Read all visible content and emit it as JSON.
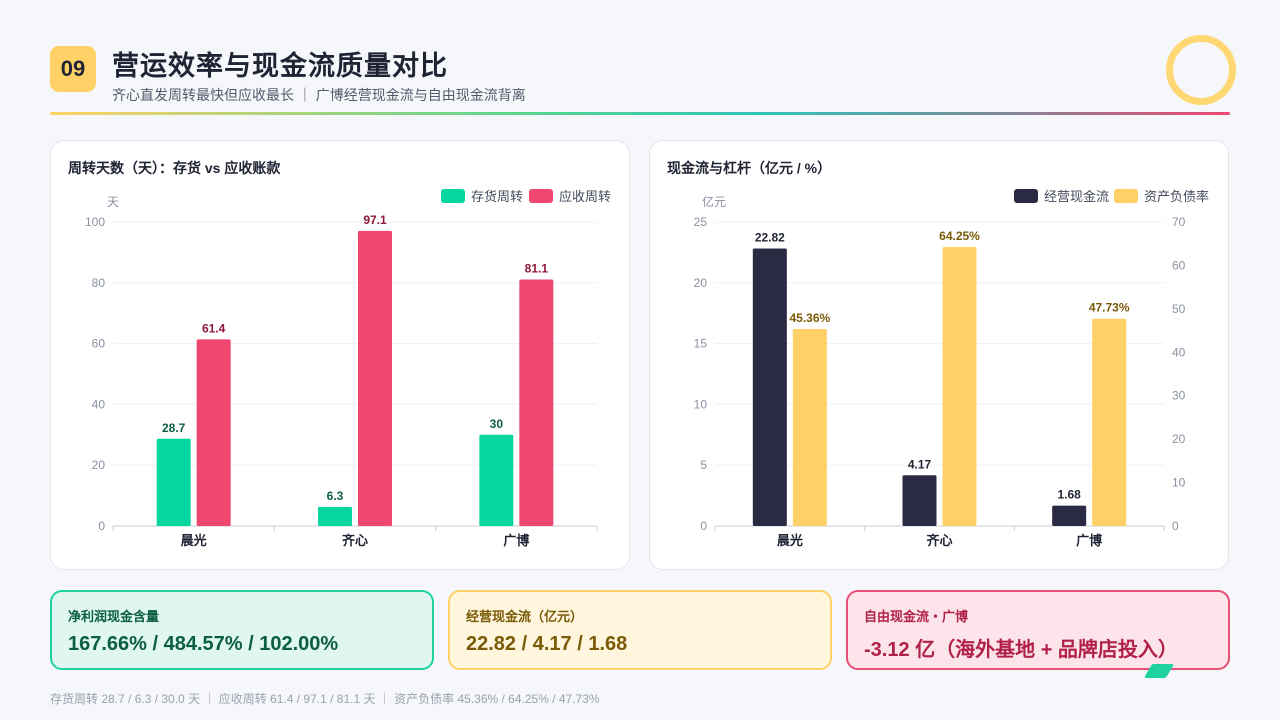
{
  "header": {
    "number": "09",
    "title": "营运效率与现金流质量对比",
    "subtitle": "齐心直发周转最快但应收最长 ｜ 广博经营现金流与自由现金流背离"
  },
  "chart_data": [
    {
      "type": "bar",
      "title": "周转天数（天）：存货 vs 应收账款",
      "ylabel": "天",
      "ylim": [
        0,
        100
      ],
      "yticks": [
        0,
        20,
        40,
        60,
        80,
        100
      ],
      "categories": [
        "晨光",
        "齐心",
        "广博"
      ],
      "series": [
        {
          "name": "存货周转",
          "color": "#06d6a0",
          "label_color": "#0b5d45",
          "values": [
            28.7,
            6.3,
            30
          ],
          "labels": [
            "28.7",
            "6.3",
            "30"
          ]
        },
        {
          "name": "应收周转",
          "color": "#ef476f",
          "label_color": "#8f1738",
          "values": [
            61.4,
            97.1,
            81.1
          ],
          "labels": [
            "61.4",
            "97.1",
            "81.1"
          ]
        }
      ],
      "legend": "top-right",
      "grid": true
    },
    {
      "type": "bar",
      "title": "现金流与杠杆（亿元 / %）",
      "ylabel": "亿元",
      "ylim": [
        0,
        25
      ],
      "yticks": [
        0,
        5,
        10,
        15,
        20,
        25
      ],
      "y2lim": [
        0,
        70
      ],
      "y2ticks": [
        0,
        10,
        20,
        30,
        40,
        50,
        60,
        70
      ],
      "categories": [
        "晨光",
        "齐心",
        "广博"
      ],
      "series": [
        {
          "name": "经营现金流",
          "axis": "left",
          "color": "#2a2b42",
          "label_color": "#1f2333",
          "values": [
            22.82,
            4.17,
            1.68
          ],
          "labels": [
            "22.82",
            "4.17",
            "1.68"
          ]
        },
        {
          "name": "资产负债率",
          "axis": "right",
          "color": "#ffd166",
          "label_color": "#7a5a06",
          "values": [
            45.36,
            64.25,
            47.73
          ],
          "labels": [
            "45.36%",
            "64.25%",
            "47.73%"
          ]
        }
      ],
      "legend": "top-right",
      "grid": true
    }
  ],
  "cards": [
    {
      "label": "净利润现金含量",
      "value": "167.66% / 484.57% / 102.00%"
    },
    {
      "label": "经营现金流（亿元）",
      "value": "22.82 / 4.17 / 1.68"
    },
    {
      "label": "自由现金流・广博",
      "value": "-3.12 亿（海外基地 + 品牌店投入）"
    }
  ],
  "footnote": "存货周转 28.7 / 6.3 / 30.0 天 ｜ 应收周转 61.4 / 97.1 / 81.1 天 ｜ 资产负债率 45.36% / 64.25% / 47.73%"
}
